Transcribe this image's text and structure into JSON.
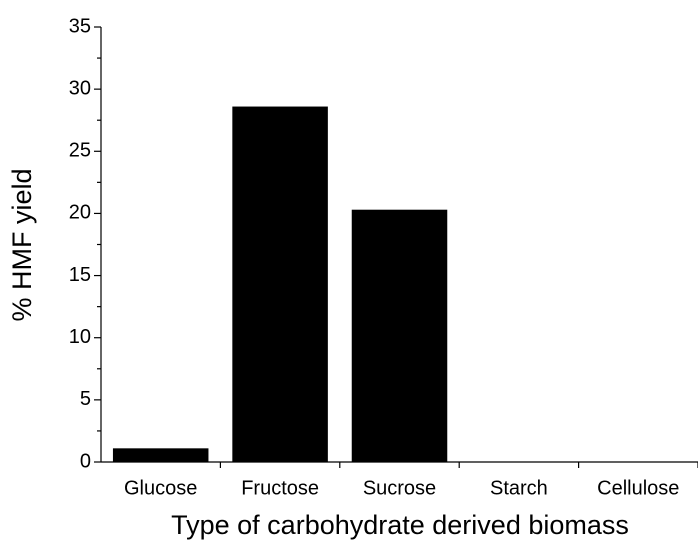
{
  "chart_data": {
    "type": "bar",
    "categories": [
      "Glucose",
      "Fructose",
      "Sucrose",
      "Starch",
      "Cellulose"
    ],
    "values": [
      1.1,
      28.6,
      20.3,
      0,
      0
    ],
    "color": "#000000",
    "xlabel": "Type of carbohydrate derived biomass",
    "ylabel": "% HMF yield",
    "ylim": [
      0,
      35
    ],
    "yticks": [
      0,
      5,
      10,
      15,
      20,
      25,
      30,
      35
    ],
    "grid": false
  }
}
